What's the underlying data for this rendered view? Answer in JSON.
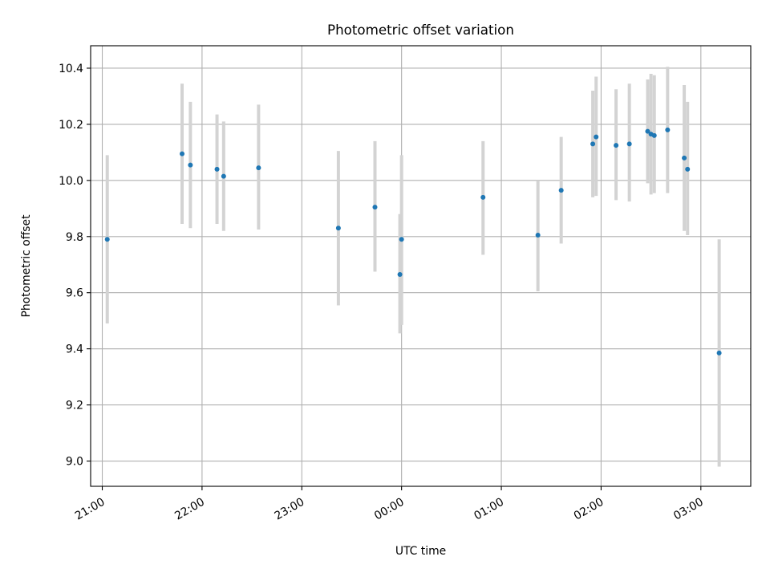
{
  "chart_data": {
    "type": "scatter",
    "title": "Photometric offset variation",
    "xlabel": "UTC time",
    "ylabel": "Photometric offset",
    "xlim": [
      "20:53",
      "03:30"
    ],
    "ylim": [
      8.91,
      10.48
    ],
    "xticks": [
      "21:00",
      "22:00",
      "23:00",
      "00:00",
      "01:00",
      "02:00",
      "03:00"
    ],
    "yticks": [
      "9.0",
      "9.2",
      "9.4",
      "9.6",
      "9.8",
      "10.0",
      "10.2",
      "10.4"
    ],
    "grid": true,
    "legend": "none",
    "colors": {
      "point": "#1f77b4",
      "errorbar": "#d3d3d3",
      "grid": "#b0b0b0"
    },
    "points": [
      {
        "x": "21:03",
        "y": 9.79,
        "ylow": 9.49,
        "yhigh": 10.09
      },
      {
        "x": "21:48",
        "y": 10.095,
        "ylow": 9.845,
        "yhigh": 10.345
      },
      {
        "x": "21:53",
        "y": 10.055,
        "ylow": 9.83,
        "yhigh": 10.28
      },
      {
        "x": "22:09",
        "y": 10.04,
        "ylow": 9.845,
        "yhigh": 10.235
      },
      {
        "x": "22:13",
        "y": 10.015,
        "ylow": 9.82,
        "yhigh": 10.21
      },
      {
        "x": "22:34",
        "y": 10.045,
        "ylow": 9.825,
        "yhigh": 10.27
      },
      {
        "x": "23:22",
        "y": 9.83,
        "ylow": 9.555,
        "yhigh": 10.105
      },
      {
        "x": "23:44",
        "y": 9.905,
        "ylow": 9.675,
        "yhigh": 10.14
      },
      {
        "x": "23:59",
        "y": 9.665,
        "ylow": 9.455,
        "yhigh": 9.88
      },
      {
        "x": "00:00",
        "y": 9.79,
        "ylow": 9.485,
        "yhigh": 10.09
      },
      {
        "x": "00:49",
        "y": 9.94,
        "ylow": 9.735,
        "yhigh": 10.14
      },
      {
        "x": "01:22",
        "y": 9.805,
        "ylow": 9.605,
        "yhigh": 10.0
      },
      {
        "x": "01:36",
        "y": 9.965,
        "ylow": 9.775,
        "yhigh": 10.155
      },
      {
        "x": "01:55",
        "y": 10.13,
        "ylow": 9.94,
        "yhigh": 10.32
      },
      {
        "x": "01:57",
        "y": 10.155,
        "ylow": 9.945,
        "yhigh": 10.37
      },
      {
        "x": "02:09",
        "y": 10.125,
        "ylow": 9.93,
        "yhigh": 10.325
      },
      {
        "x": "02:17",
        "y": 10.13,
        "ylow": 9.925,
        "yhigh": 10.345
      },
      {
        "x": "02:28",
        "y": 10.175,
        "ylow": 9.99,
        "yhigh": 10.36
      },
      {
        "x": "02:30",
        "y": 10.165,
        "ylow": 9.95,
        "yhigh": 10.38
      },
      {
        "x": "02:32",
        "y": 10.16,
        "ylow": 9.955,
        "yhigh": 10.375
      },
      {
        "x": "02:40",
        "y": 10.18,
        "ylow": 9.955,
        "yhigh": 10.405
      },
      {
        "x": "02:50",
        "y": 10.08,
        "ylow": 9.82,
        "yhigh": 10.34
      },
      {
        "x": "02:52",
        "y": 10.04,
        "ylow": 9.805,
        "yhigh": 10.28
      },
      {
        "x": "03:11",
        "y": 9.385,
        "ylow": 8.98,
        "yhigh": 9.79
      }
    ]
  }
}
